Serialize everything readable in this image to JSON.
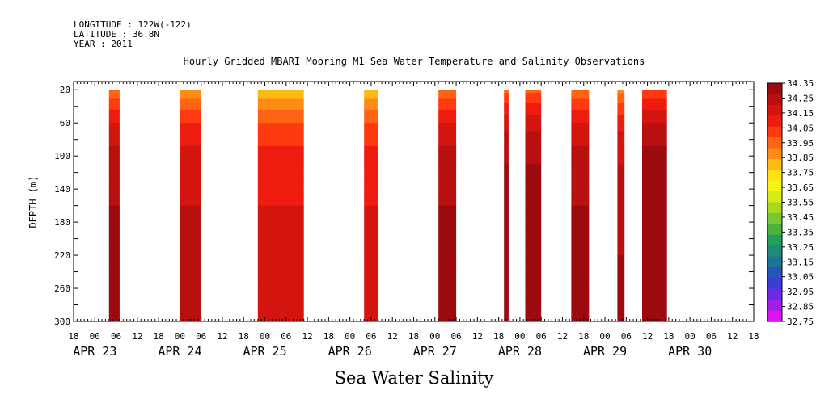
{
  "header": {
    "longitude": "LONGITUDE : 122W(-122)",
    "latitude": "LATITUDE : 36.8N",
    "year": "YEAR : 2011"
  },
  "chart_data": {
    "type": "heatmap",
    "title": "Hourly Gridded MBARI Mooring M1 Sea Water Temperature and Salinity Observations",
    "xlabel": "Sea Water Salinity",
    "ylabel": "DEPTH (m)",
    "x_unit": "hours since APR 23 00:00",
    "xlim": [
      -6,
      186
    ],
    "ylim": [
      300,
      10
    ],
    "y_ticks": [
      20,
      60,
      100,
      140,
      180,
      220,
      260,
      300
    ],
    "x_hour_ticks": [
      {
        "h": -6,
        "label": "18"
      },
      {
        "h": 0,
        "label": "00"
      },
      {
        "h": 6,
        "label": "06"
      },
      {
        "h": 12,
        "label": "12"
      },
      {
        "h": 18,
        "label": "18"
      },
      {
        "h": 24,
        "label": "00"
      },
      {
        "h": 30,
        "label": "06"
      },
      {
        "h": 36,
        "label": "12"
      },
      {
        "h": 42,
        "label": "18"
      },
      {
        "h": 48,
        "label": "00"
      },
      {
        "h": 54,
        "label": "06"
      },
      {
        "h": 60,
        "label": "12"
      },
      {
        "h": 66,
        "label": "18"
      },
      {
        "h": 72,
        "label": "00"
      },
      {
        "h": 78,
        "label": "06"
      },
      {
        "h": 84,
        "label": "12"
      },
      {
        "h": 90,
        "label": "18"
      },
      {
        "h": 96,
        "label": "00"
      },
      {
        "h": 102,
        "label": "06"
      },
      {
        "h": 108,
        "label": "12"
      },
      {
        "h": 114,
        "label": "18"
      },
      {
        "h": 120,
        "label": "00"
      },
      {
        "h": 126,
        "label": "06"
      },
      {
        "h": 132,
        "label": "12"
      },
      {
        "h": 138,
        "label": "18"
      },
      {
        "h": 144,
        "label": "00"
      },
      {
        "h": 150,
        "label": "06"
      },
      {
        "h": 156,
        "label": "12"
      },
      {
        "h": 162,
        "label": "18"
      },
      {
        "h": 168,
        "label": "00"
      },
      {
        "h": 174,
        "label": "06"
      },
      {
        "h": 180,
        "label": "12"
      },
      {
        "h": 186,
        "label": "18"
      }
    ],
    "date_labels": [
      {
        "h": 0,
        "label": "APR 23"
      },
      {
        "h": 24,
        "label": "APR 24"
      },
      {
        "h": 48,
        "label": "APR 25"
      },
      {
        "h": 72,
        "label": "APR 26"
      },
      {
        "h": 96,
        "label": "APR 27"
      },
      {
        "h": 120,
        "label": "APR 28"
      },
      {
        "h": 144,
        "label": "APR 29"
      },
      {
        "h": 168,
        "label": "APR 30"
      }
    ],
    "data_segments": [
      {
        "start": 4,
        "end": 7,
        "surface": 33.8
      },
      {
        "start": 24,
        "end": 30,
        "surface": 33.7
      },
      {
        "start": 46,
        "end": 59,
        "surface": 33.6
      },
      {
        "start": 76,
        "end": 80,
        "surface": 33.6
      },
      {
        "start": 97,
        "end": 102,
        "surface": 33.8
      },
      {
        "start": 115.5,
        "end": 116.8,
        "surface": 33.85
      },
      {
        "start": 121.5,
        "end": 126,
        "surface": 33.85
      },
      {
        "start": 134.5,
        "end": 139.5,
        "surface": 33.8
      },
      {
        "start": 147.5,
        "end": 149.5,
        "surface": 33.75
      },
      {
        "start": 154.5,
        "end": 161.5,
        "surface": 33.9
      }
    ],
    "depth_profile": [
      {
        "depth": 10,
        "offset": 0
      },
      {
        "depth": 30,
        "offset": 0.15
      },
      {
        "depth": 50,
        "offset": 0.3
      },
      {
        "depth": 75,
        "offset": 0.42
      },
      {
        "depth": 110,
        "offset": 0.5
      },
      {
        "depth": 160,
        "offset": 0.55
      },
      {
        "depth": 220,
        "offset": 0.6
      },
      {
        "depth": 260,
        "offset": 0.65
      },
      {
        "depth": 300,
        "offset": 0.6
      }
    ],
    "colorbar": {
      "min": 32.75,
      "max": 34.35,
      "step": 0.1,
      "labels": [
        "34.35",
        "34.25",
        "34.15",
        "34.05",
        "33.95",
        "33.85",
        "33.75",
        "33.65",
        "33.55",
        "33.45",
        "33.35",
        "33.25",
        "33.15",
        "33.05",
        "32.95",
        "32.85",
        "32.75"
      ],
      "colors": [
        "#9b0a0f",
        "#b8100f",
        "#d4140f",
        "#ee1c0f",
        "#ff3a0f",
        "#ff6414",
        "#ff8c14",
        "#ffb914",
        "#ffe114",
        "#f5f514",
        "#d7eb14",
        "#a8d91e",
        "#7ac831",
        "#4bb33c",
        "#23a05a",
        "#1e8c78",
        "#1e7396",
        "#2357b9",
        "#3c3cd7",
        "#6e28e6",
        "#a01ee6",
        "#dc14f0"
      ]
    }
  }
}
